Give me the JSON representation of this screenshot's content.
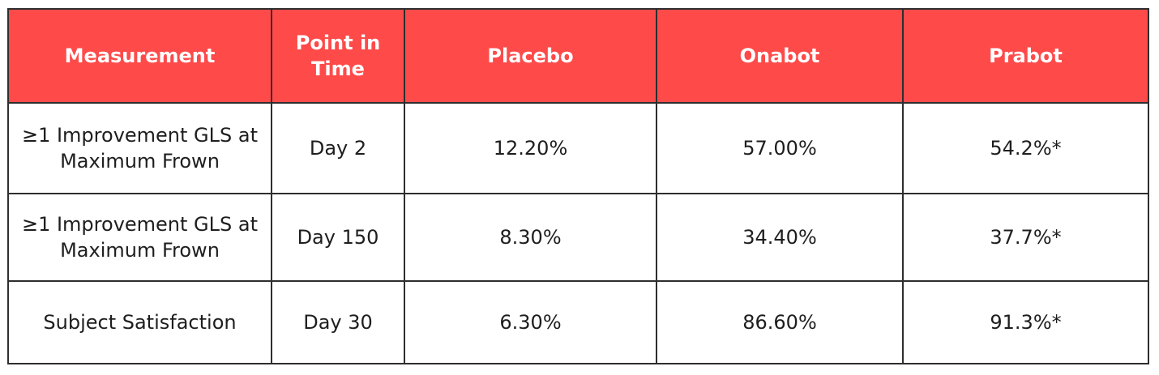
{
  "table": {
    "header_color": "#ff4a4a",
    "headers": [
      "Measurement",
      "Point in Time",
      "Placebo",
      "Onabot",
      "Prabot"
    ],
    "rows": [
      [
        "≥1 Improvement GLS at Maximum Frown",
        "Day 2",
        "12.20%",
        "57.00%",
        "54.2%*"
      ],
      [
        "≥1 Improvement GLS at Maximum Frown",
        "Day 150",
        "8.30%",
        "34.40%",
        "37.7%*"
      ],
      [
        "Subject Satisfaction",
        "Day 30",
        "6.30%",
        "86.60%",
        "91.3%*"
      ]
    ]
  }
}
